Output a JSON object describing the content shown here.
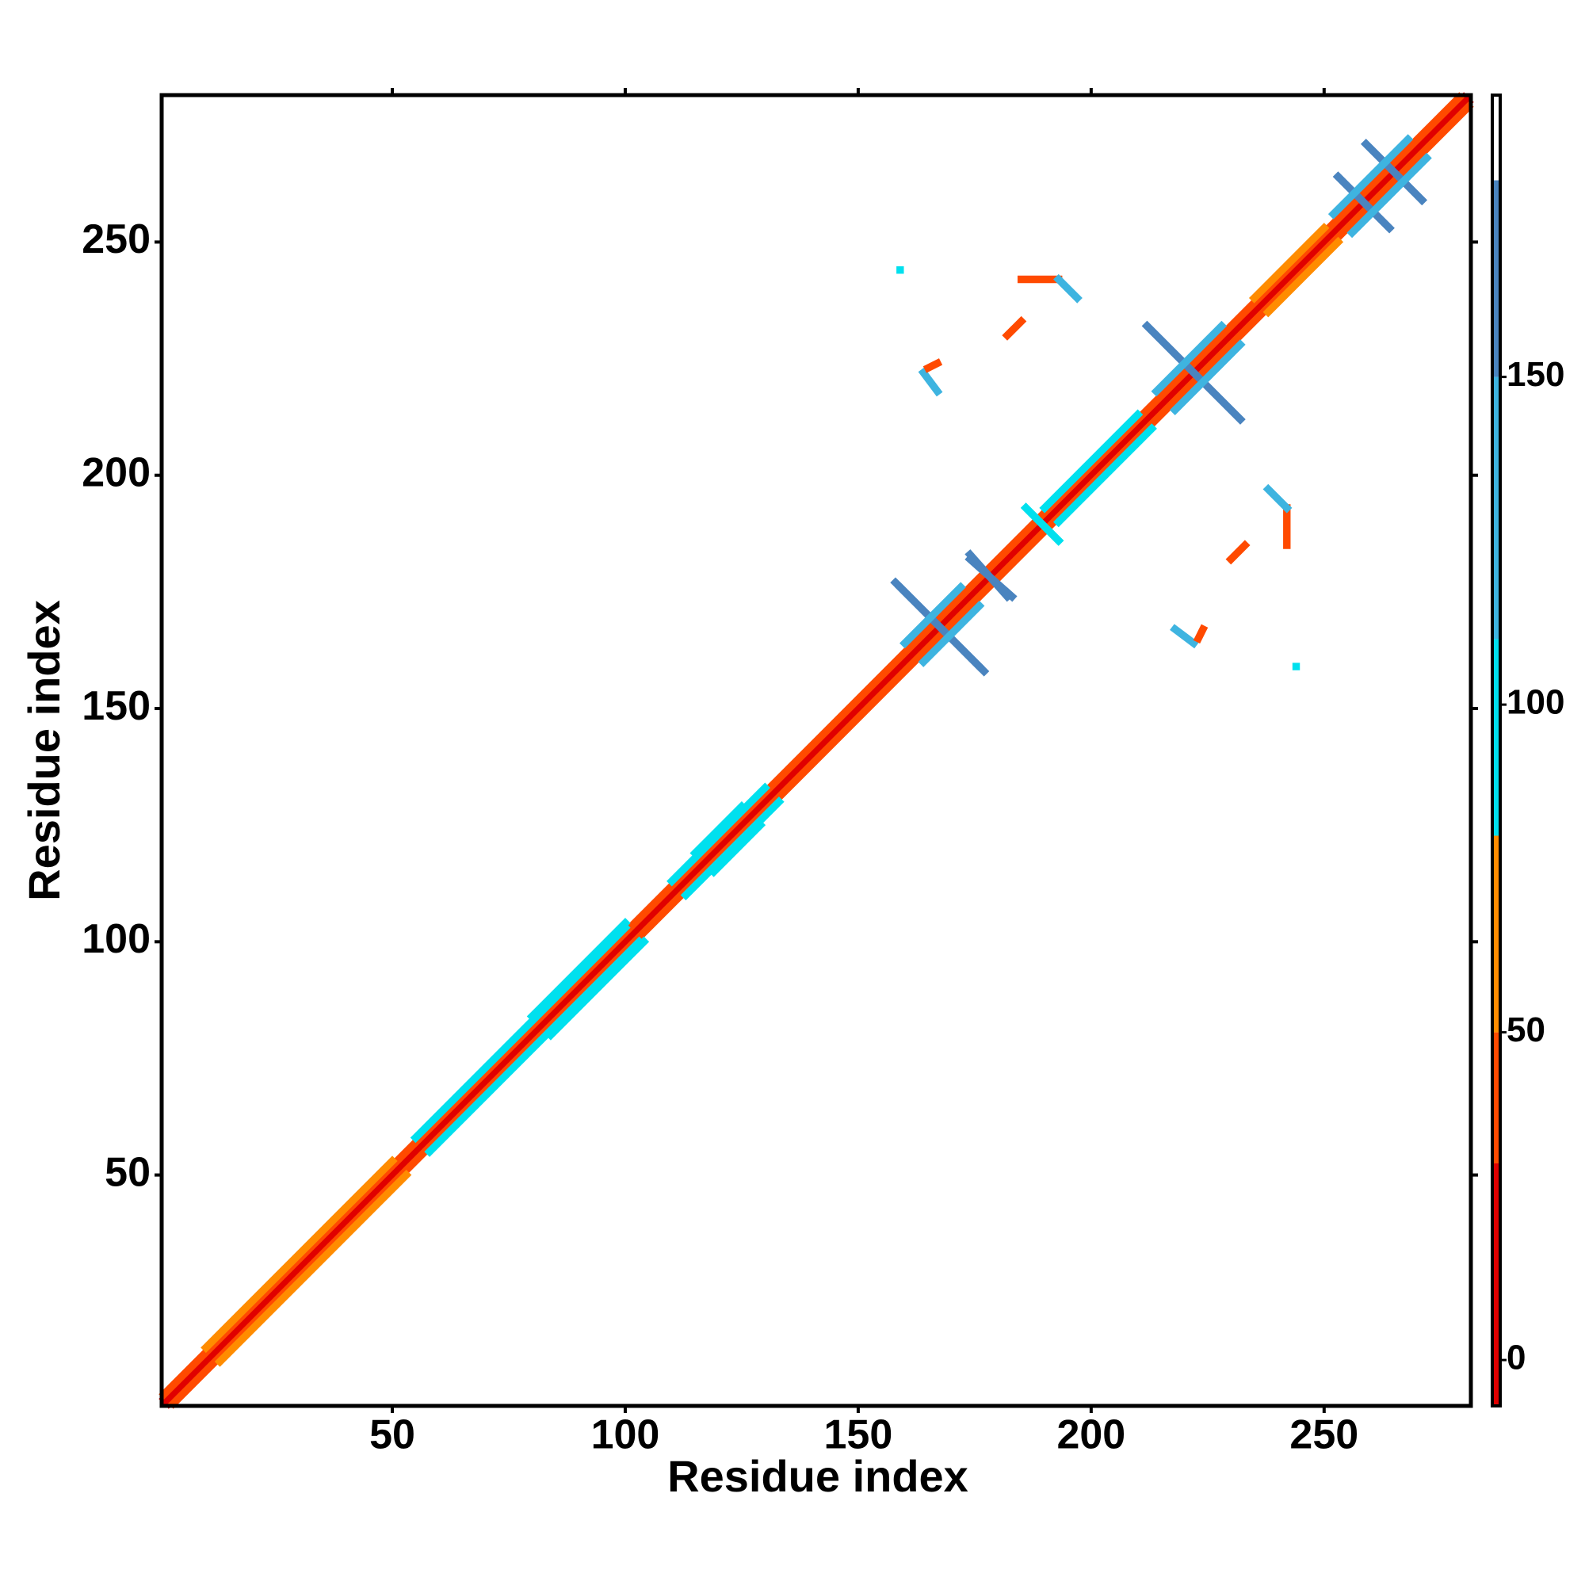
{
  "chart_data": {
    "type": "contact_map",
    "x_label": "Residue index",
    "y_label": "Residue index",
    "xlim": [
      0.5,
      281.5
    ],
    "ylim": [
      0.5,
      281.5
    ],
    "xticks": [
      50,
      100,
      150,
      200,
      250
    ],
    "yticks": [
      50,
      100,
      150,
      200,
      250
    ],
    "symmetric": true,
    "colorbar": {
      "lim": [
        -7,
        193
      ],
      "ticks": [
        0,
        50,
        100,
        150
      ],
      "stops": [
        {
          "from": -7,
          "to": 30,
          "color": "#e00000"
        },
        {
          "from": 30,
          "to": 50,
          "color": "#ff4a00"
        },
        {
          "from": 50,
          "to": 80,
          "color": "#ff8c00"
        },
        {
          "from": 80,
          "to": 110,
          "color": "#00e0ee"
        },
        {
          "from": 110,
          "to": 150,
          "color": "#3eb4e0"
        },
        {
          "from": 150,
          "to": 180,
          "color": "#4a84bf"
        },
        {
          "from": 180,
          "to": 193,
          "color": "#ffffff"
        }
      ]
    },
    "segments": [
      {
        "from": [
          1,
          2
        ],
        "to": [
          280,
          281
        ],
        "value": 5
      },
      {
        "from": [
          1,
          3
        ],
        "to": [
          279,
          281
        ],
        "value": 40
      },
      {
        "from": [
          10,
          13
        ],
        "to": [
          50,
          53
        ],
        "value": 60
      },
      {
        "from": [
          55,
          58
        ],
        "to": [
          100,
          103
        ],
        "value": 95
      },
      {
        "from": [
          110,
          113
        ],
        "to": [
          130,
          133
        ],
        "value": 95
      },
      {
        "from": [
          190,
          193
        ],
        "to": [
          210,
          213
        ],
        "value": 95
      },
      {
        "from": [
          235,
          238
        ],
        "to": [
          250,
          253
        ],
        "value": 60
      },
      {
        "from": [
          80,
          84
        ],
        "to": [
          100,
          104
        ],
        "value": 100
      },
      {
        "from": [
          115,
          119
        ],
        "to": [
          125,
          129
        ],
        "value": 100
      },
      {
        "from": [
          158,
          177
        ],
        "to": [
          176,
          159
        ],
        "value": 160
      },
      {
        "from": [
          174,
          183
        ],
        "to": [
          182,
          174
        ],
        "value": 160
      },
      {
        "from": [
          212,
          232
        ],
        "to": [
          232,
          212
        ],
        "value": 160
      },
      {
        "from": [
          253,
          264
        ],
        "to": [
          264,
          253
        ],
        "value": 160
      },
      {
        "from": [
          259,
          271
        ],
        "to": [
          271,
          259
        ],
        "value": 160
      },
      {
        "from": [
          160,
          164
        ],
        "to": [
          172,
          176
        ],
        "value": 150
      },
      {
        "from": [
          214,
          218
        ],
        "to": [
          228,
          232
        ],
        "value": 150
      },
      {
        "from": [
          252,
          256
        ],
        "to": [
          262,
          266
        ],
        "value": 150
      },
      {
        "from": [
          258,
          262
        ],
        "to": [
          268,
          272
        ],
        "value": 150
      },
      {
        "from": [
          186,
          193
        ],
        "to": [
          193,
          186
        ],
        "value": 110
      },
      {
        "from": [
          182,
          230
        ],
        "to": [
          185,
          233
        ],
        "value": 45
      },
      {
        "from": [
          185,
          242
        ],
        "to": [
          193,
          242
        ],
        "value": 45
      },
      {
        "from": [
          193,
          242
        ],
        "to": [
          197,
          238
        ],
        "value": 130
      },
      {
        "from": [
          164,
          222
        ],
        "to": [
          167,
          218
        ],
        "value": 150
      },
      {
        "from": [
          165,
          223
        ],
        "to": [
          167,
          224
        ],
        "value": 40
      },
      {
        "from": [
          159,
          244
        ],
        "to": [
          159,
          244
        ],
        "value": 100
      }
    ]
  }
}
